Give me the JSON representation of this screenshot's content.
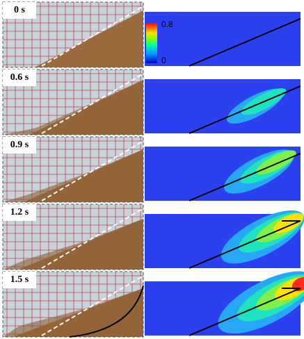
{
  "panels": [
    {
      "time": "0 s"
    },
    {
      "time": "0.6 s"
    },
    {
      "time": "0.9 s"
    },
    {
      "time": "1.2 s"
    },
    {
      "time": "1.5 s"
    }
  ],
  "colorbar": {
    "max": "0.8",
    "min": "0"
  }
}
